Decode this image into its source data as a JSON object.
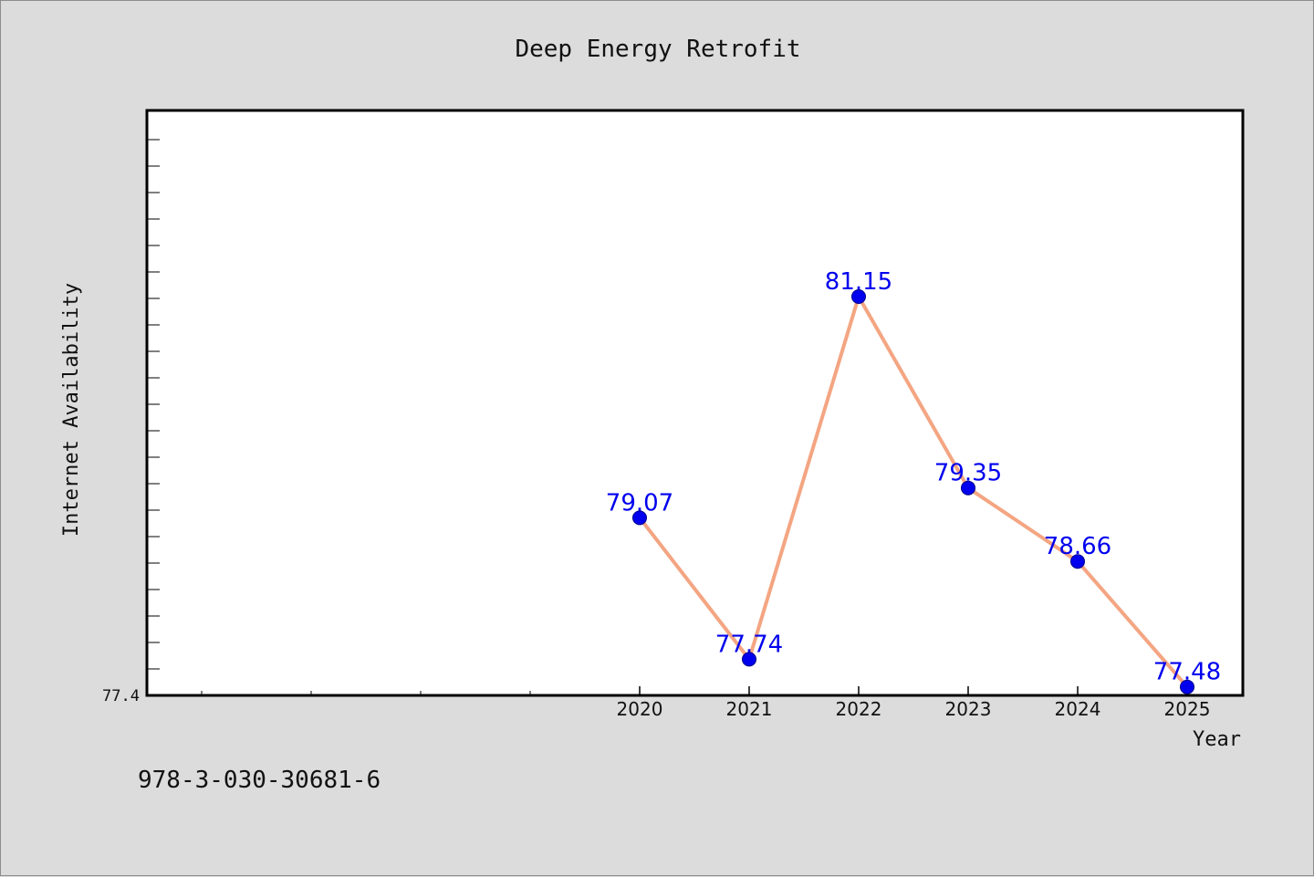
{
  "chart_data": {
    "type": "line",
    "title": "Deep Energy Retrofit",
    "xlabel": "Year",
    "ylabel": "Internet Availability",
    "x": [
      "2020",
      "2021",
      "2022",
      "2023",
      "2024",
      "2025"
    ],
    "series": [
      {
        "values": [
          79.07,
          77.74,
          81.15,
          79.35,
          78.66,
          77.48
        ]
      }
    ],
    "data_labels": [
      "79.07",
      "77.74",
      "81.15",
      "79.35",
      "78.66",
      "77.48"
    ],
    "y_min_label": "77.4",
    "ylim": [
      77.4,
      82.9
    ],
    "grid": false,
    "legend": "none",
    "line_color": "#f4a582",
    "marker_color": "#0000ee",
    "label_color": "#0000ee"
  },
  "footer": {
    "isbn": "978-3-030-30681-6"
  }
}
